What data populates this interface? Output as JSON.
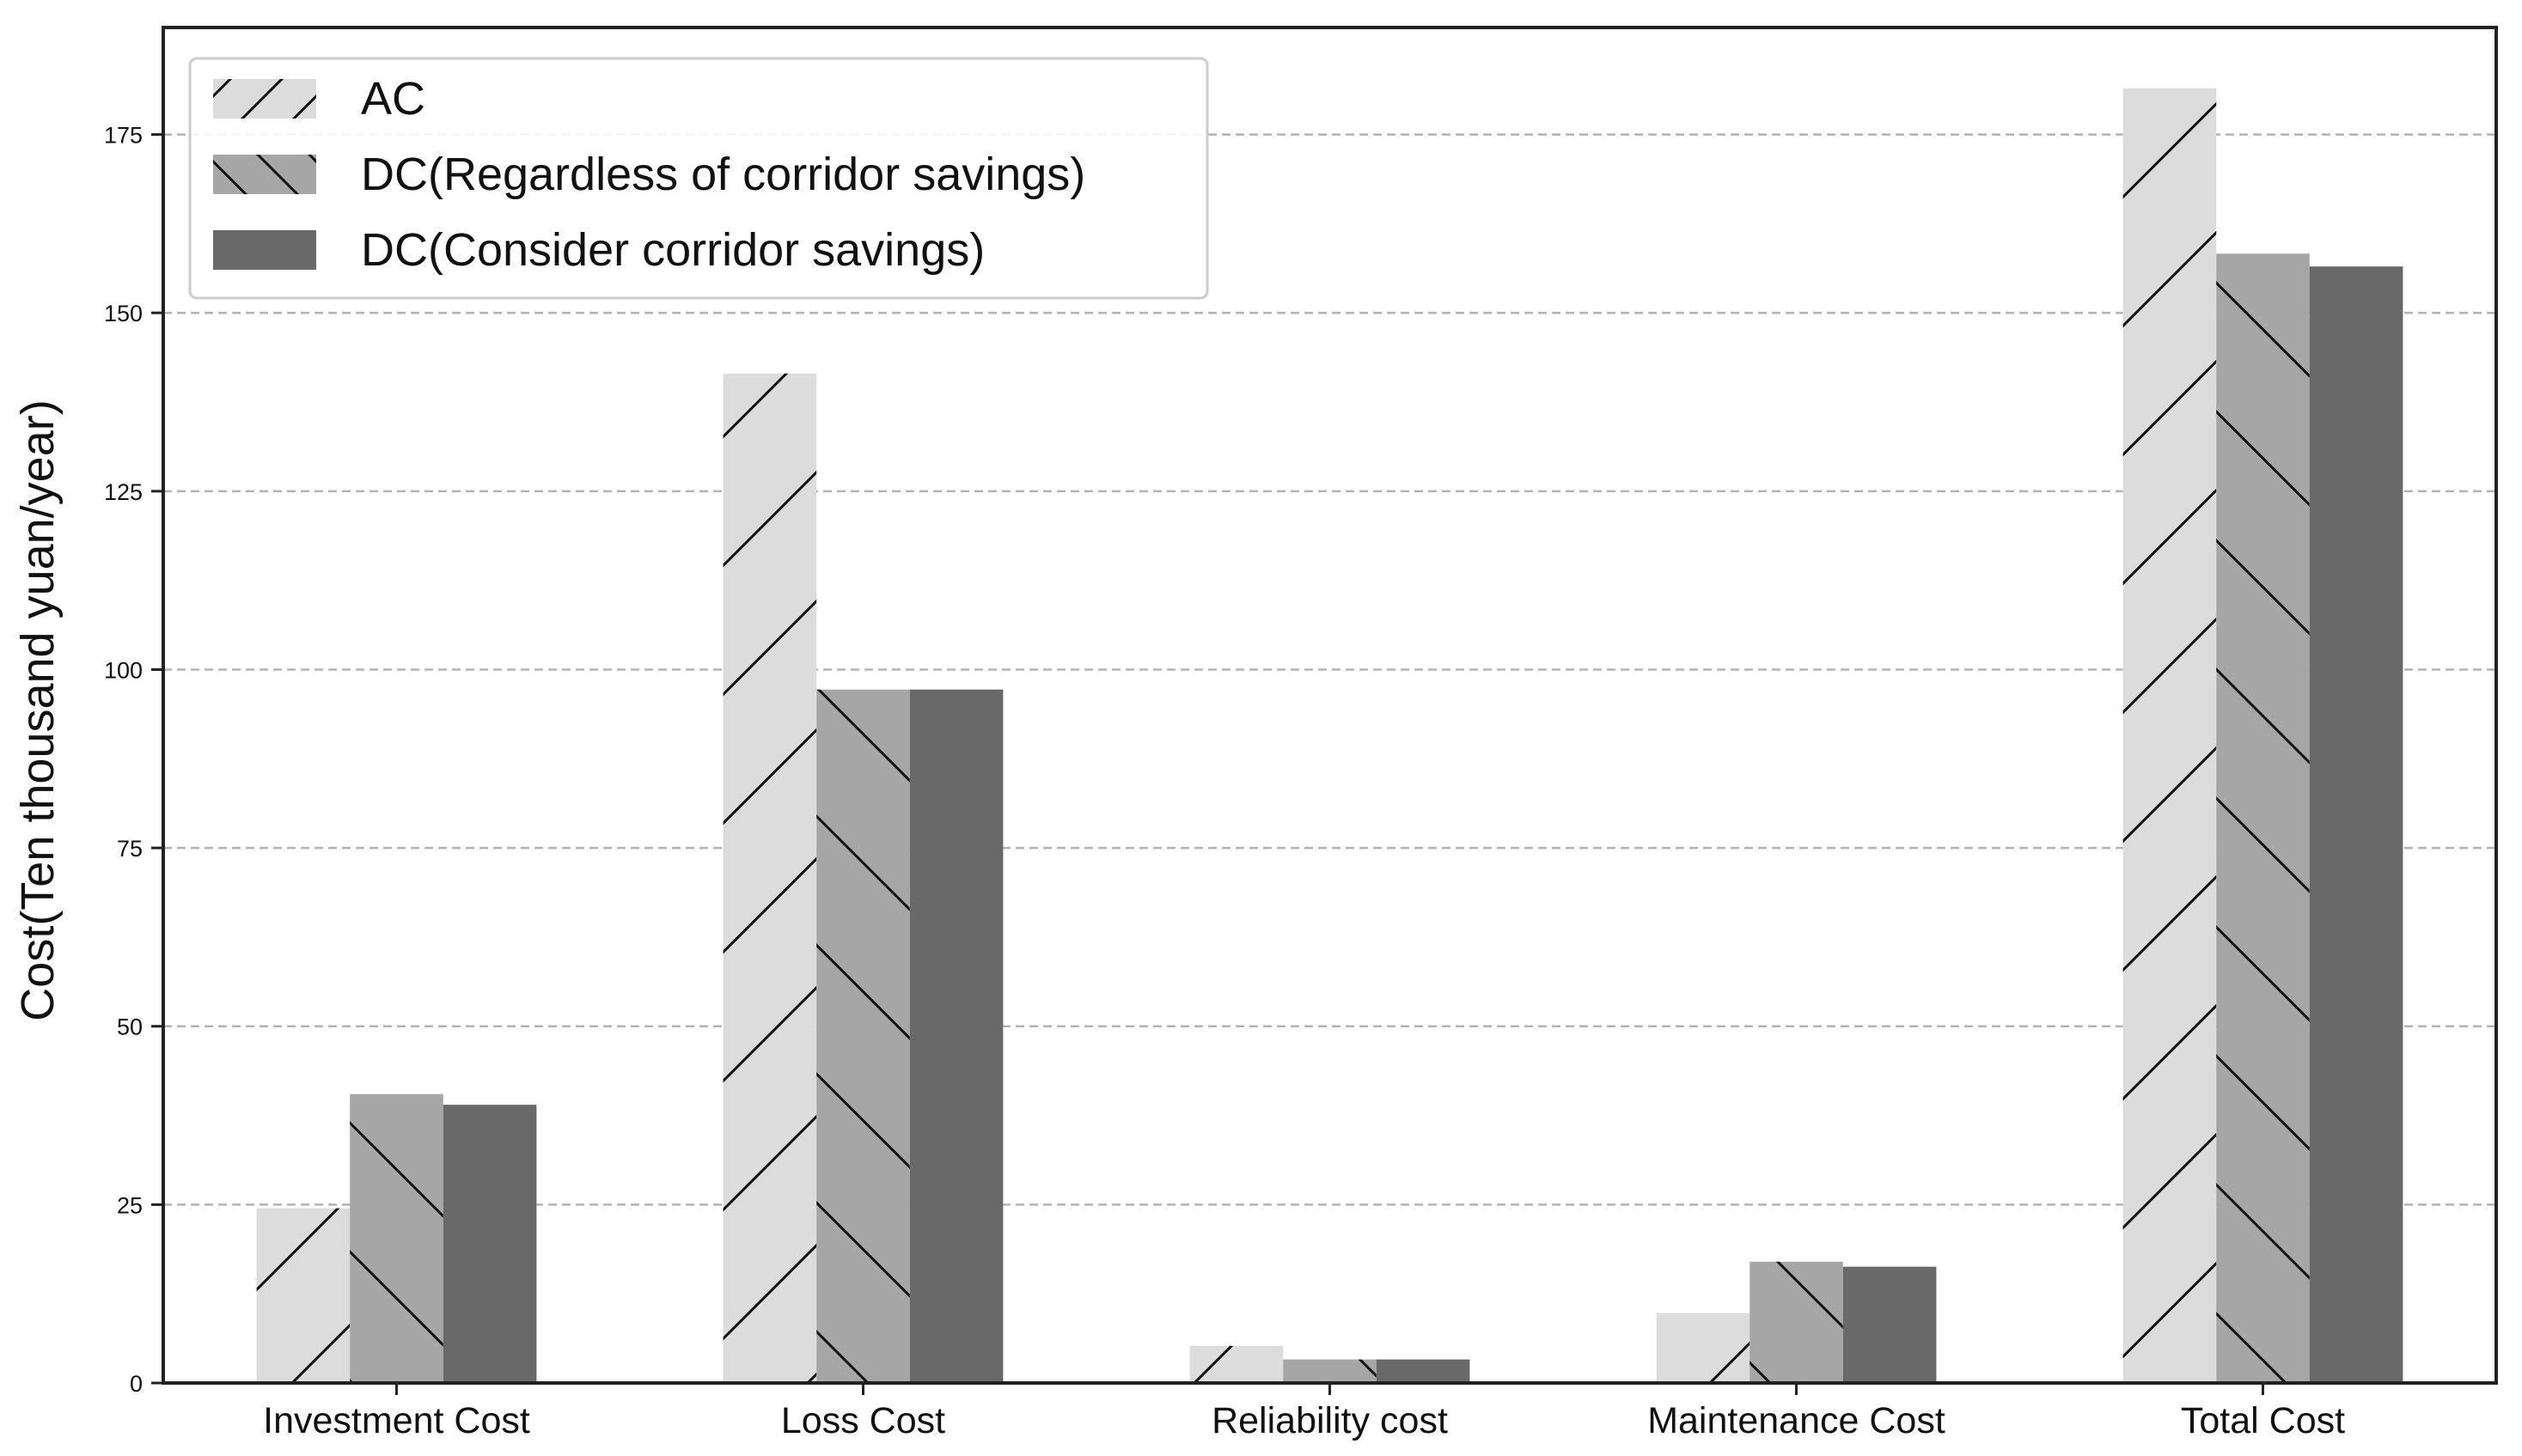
{
  "chart_data": {
    "type": "bar",
    "title": "",
    "xlabel": "",
    "ylabel": "Cost(Ten thousand yuan/year)",
    "ylim": [
      0,
      190
    ],
    "yticks": [
      0,
      25,
      50,
      75,
      100,
      125,
      150,
      175
    ],
    "grid": "y-dashed",
    "legend_position": "top-left",
    "categories": [
      "Investment Cost",
      "Loss Cost",
      "Reliability cost",
      "Maintenance Cost",
      "Total Cost"
    ],
    "series": [
      {
        "name": "AC",
        "values": [
          24.5,
          141.5,
          5.2,
          9.8,
          181.5
        ],
        "color": "#dcdcdc",
        "hatch": "forward-diagonal"
      },
      {
        "name": "DC(Regardless of corridor savings)",
        "values": [
          40.5,
          97.2,
          3.3,
          17.0,
          158.3
        ],
        "color": "#a6a6a6",
        "hatch": "back-diagonal"
      },
      {
        "name": "DC(Consider corridor savings)",
        "values": [
          39.0,
          97.2,
          3.3,
          16.3,
          156.5
        ],
        "color": "#696969",
        "hatch": "none"
      }
    ]
  }
}
